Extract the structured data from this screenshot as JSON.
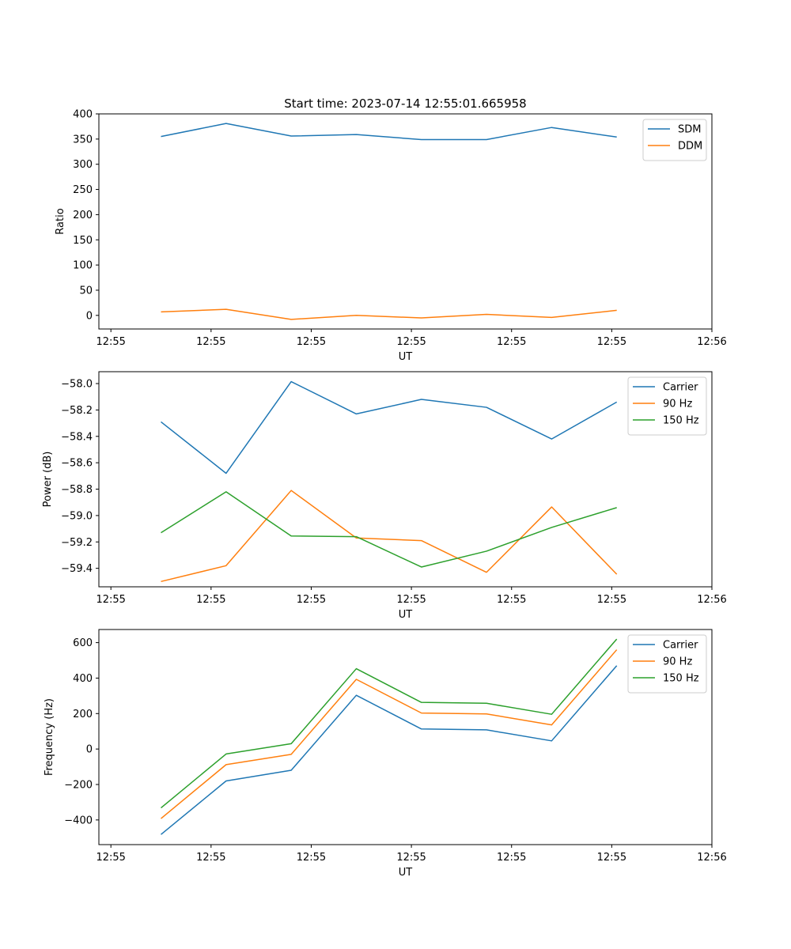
{
  "chart_data": [
    {
      "type": "line",
      "title": "Start time: 2023-07-14 12:55:01.665958",
      "xlabel": "UT",
      "ylabel": "Ratio",
      "x_ticks": [
        0,
        1,
        2,
        3,
        4,
        5,
        6
      ],
      "x_tick_labels": [
        "12:55",
        "12:55",
        "12:55",
        "12:55",
        "12:55",
        "12:55",
        "12:56"
      ],
      "xlim": [
        -0.12,
        6.0
      ],
      "ylim": [
        -27,
        400
      ],
      "y_ticks": [
        0,
        50,
        100,
        150,
        200,
        250,
        300,
        350,
        400
      ],
      "x": [
        0.5,
        1.15,
        1.8,
        2.45,
        3.1,
        3.75,
        4.4,
        5.05
      ],
      "legend_position": "top-right",
      "series": [
        {
          "name": "SDM",
          "color": "#1f77b4",
          "values": [
            355,
            381,
            356,
            359,
            349,
            349,
            373,
            354
          ]
        },
        {
          "name": "DDM",
          "color": "#ff7f0e",
          "values": [
            7,
            12,
            -8,
            0,
            -5,
            2,
            -4,
            10
          ]
        }
      ]
    },
    {
      "type": "line",
      "title": "",
      "xlabel": "UT",
      "ylabel": "Power (dB)",
      "x_ticks": [
        0,
        1,
        2,
        3,
        4,
        5,
        6
      ],
      "x_tick_labels": [
        "12:55",
        "12:55",
        "12:55",
        "12:55",
        "12:55",
        "12:55",
        "12:56"
      ],
      "xlim": [
        -0.12,
        6.0
      ],
      "ylim": [
        -59.54,
        -57.91
      ],
      "y_ticks": [
        -59.4,
        -59.2,
        -59.0,
        -58.8,
        -58.6,
        -58.4,
        -58.2,
        -58.0
      ],
      "y_tick_labels": [
        "−59.4",
        "−59.2",
        "−59.0",
        "−58.8",
        "−58.6",
        "−58.4",
        "−58.2",
        "−58.0"
      ],
      "x": [
        0.5,
        1.15,
        1.8,
        2.45,
        3.1,
        3.75,
        4.4,
        5.05
      ],
      "legend_position": "top-right",
      "series": [
        {
          "name": "Carrier",
          "color": "#1f77b4",
          "values": [
            -58.29,
            -58.68,
            -57.985,
            -58.23,
            -58.12,
            -58.18,
            -58.42,
            -58.14
          ]
        },
        {
          "name": "90 Hz",
          "color": "#ff7f0e",
          "values": [
            -59.5,
            -59.38,
            -58.81,
            -59.17,
            -59.19,
            -59.43,
            -58.935,
            -59.445
          ]
        },
        {
          "name": "150 Hz",
          "color": "#2ca02c",
          "values": [
            -59.13,
            -58.82,
            -59.155,
            -59.16,
            -59.39,
            -59.27,
            -59.09,
            -58.94
          ]
        }
      ]
    },
    {
      "type": "line",
      "title": "",
      "xlabel": "UT",
      "ylabel": "Frequency (Hz)",
      "x_ticks": [
        0,
        1,
        2,
        3,
        4,
        5,
        6
      ],
      "x_tick_labels": [
        "12:55",
        "12:55",
        "12:55",
        "12:55",
        "12:55",
        "12:55",
        "12:56"
      ],
      "xlim": [
        -0.12,
        6.0
      ],
      "ylim": [
        -539,
        674
      ],
      "y_ticks": [
        -400,
        -200,
        0,
        200,
        400,
        600
      ],
      "y_tick_labels": [
        "−400",
        "−200",
        "0",
        "200",
        "400",
        "600"
      ],
      "x": [
        0.5,
        1.15,
        1.8,
        2.45,
        3.1,
        3.75,
        4.4,
        5.05
      ],
      "legend_position": "top-right",
      "series": [
        {
          "name": "Carrier",
          "color": "#1f77b4",
          "values": [
            -482,
            -180,
            -120,
            303,
            113,
            108,
            46,
            470
          ]
        },
        {
          "name": "90 Hz",
          "color": "#ff7f0e",
          "values": [
            -392,
            -88,
            -30,
            393,
            203,
            198,
            136,
            560
          ]
        },
        {
          "name": "150 Hz",
          "color": "#2ca02c",
          "values": [
            -332,
            -28,
            30,
            453,
            263,
            258,
            196,
            620
          ]
        }
      ]
    }
  ]
}
